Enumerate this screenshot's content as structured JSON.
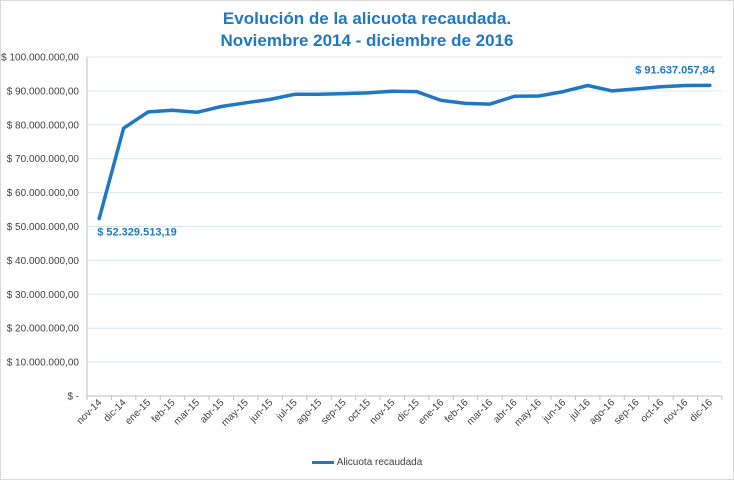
{
  "chart_data": {
    "type": "line",
    "title": "Evolución de la alicuota recaudada.",
    "subtitle": "Noviembre 2014 - diciembre de 2016",
    "xlabel": "",
    "ylabel": "",
    "ylim": [
      0,
      100000000
    ],
    "y_ticks": [
      "$ -",
      "$ 10.000.000,00",
      "$ 20.000.000,00",
      "$ 30.000.000,00",
      "$ 40.000.000,00",
      "$ 50.000.000,00",
      "$ 60.000.000,00",
      "$ 70.000.000,00",
      "$ 80.000.000,00",
      "$ 90.000.000,00",
      "$ 100.000.000,00"
    ],
    "grid": true,
    "legend_position": "bottom",
    "categories": [
      "nov-14",
      "dic-14",
      "ene-15",
      "feb-15",
      "mar-15",
      "abr-15",
      "may-15",
      "jun-15",
      "jul-15",
      "ago-15",
      "sep-15",
      "oct-15",
      "nov-15",
      "dic-15",
      "ene-16",
      "feb-16",
      "mar-16",
      "abr-16",
      "may-16",
      "jun-16",
      "jul-16",
      "ago-16",
      "sep-16",
      "oct-16",
      "nov-16",
      "dic-16"
    ],
    "series": [
      {
        "name": "Alicuota recaudada",
        "color": "#1f78c1",
        "values": [
          52329513.19,
          79000000,
          83800000,
          84300000,
          83700000,
          85400000,
          86500000,
          87500000,
          89000000,
          89000000,
          89200000,
          89400000,
          89900000,
          89800000,
          87200000,
          86300000,
          86100000,
          88400000,
          88500000,
          89800000,
          91600000,
          90000000,
          90600000,
          91200000,
          91600000,
          91637057.84
        ]
      }
    ],
    "data_labels": [
      {
        "index": 0,
        "text": "$ 52.329.513,19"
      },
      {
        "index": 25,
        "text": "$ 91.637.057,84"
      }
    ]
  }
}
